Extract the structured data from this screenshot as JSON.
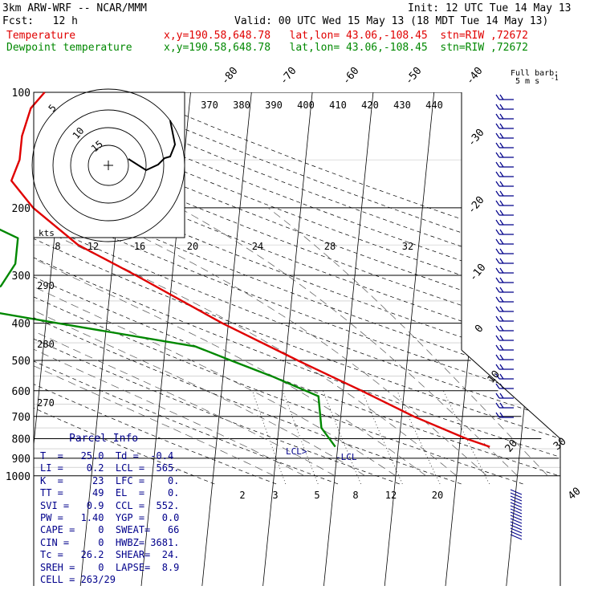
{
  "header": {
    "model": "3km ARW-WRF -- NCAR/MMM",
    "fcst": "Fcst:   12 h",
    "init": "Init: 12 UTC Tue 14 May 13",
    "valid": "Valid: 00 UTC Wed 15 May 13 (18 MDT Tue 14 May 13)",
    "temp_label": "Temperature",
    "dew_label": "Dewpoint temperature",
    "loc_text": "x,y=190.58,648.78   lat,lon= 43.06,-108.45  stn=RIW ,72672"
  },
  "barb_legend": {
    "line1": "Full barb:",
    "line2": "5 m s",
    "sup": "-1"
  },
  "colors": {
    "temp": "#e00000",
    "dew": "#008800",
    "info": "#00008b",
    "barb": "#00008b",
    "grid": "#000000",
    "moist": "#555555"
  },
  "chart_data": {
    "type": "skew-t",
    "pressure_ticks": [
      "100",
      "200",
      "300",
      "400",
      "500",
      "600",
      "700",
      "800",
      "900",
      "1000"
    ],
    "isotherm_labels_top": [
      "-80",
      "-70",
      "-60",
      "-50",
      "-40"
    ],
    "isotherm_labels_right": [
      "-30",
      "-20",
      "-10",
      "0",
      "10",
      "20",
      "30",
      "40"
    ],
    "theta_labels_top": [
      "370",
      "380",
      "390",
      "400",
      "410",
      "420",
      "430",
      "440"
    ],
    "theta_labels_left": [
      "290",
      "280",
      "270"
    ],
    "mixing_ratio_labels": [
      "2",
      "3",
      "5",
      "8",
      "12",
      "20"
    ],
    "lcl_labels": [
      "LCL",
      "LCL"
    ],
    "temperature": [
      {
        "p": 840,
        "t": 25.0
      },
      {
        "p": 800,
        "t": 21.0
      },
      {
        "p": 700,
        "t": 12.0
      },
      {
        "p": 600,
        "t": 3.0
      },
      {
        "p": 500,
        "t": -8.0
      },
      {
        "p": 400,
        "t": -21.0
      },
      {
        "p": 300,
        "t": -36.0
      },
      {
        "p": 250,
        "t": -46.0
      },
      {
        "p": 200,
        "t": -54.0
      },
      {
        "p": 170,
        "t": -58.0
      },
      {
        "p": 150,
        "t": -57.0
      },
      {
        "p": 130,
        "t": -57.0
      },
      {
        "p": 110,
        "t": -56.0
      },
      {
        "p": 100,
        "t": -54.0
      }
    ],
    "dewpoint": [
      {
        "p": 840,
        "t": -0.4
      },
      {
        "p": 750,
        "t": -3.0
      },
      {
        "p": 620,
        "t": -4.0
      },
      {
        "p": 550,
        "t": -12.0
      },
      {
        "p": 500,
        "t": -19.0
      },
      {
        "p": 460,
        "t": -25.0
      },
      {
        "p": 400,
        "t": -48.0
      },
      {
        "p": 360,
        "t": -65.0
      },
      {
        "p": 320,
        "t": -58.0
      },
      {
        "p": 280,
        "t": -56.0
      },
      {
        "p": 240,
        "t": -56.0
      },
      {
        "p": 200,
        "t": -67.0
      },
      {
        "p": 150,
        "t": -77.0
      },
      {
        "p": 120,
        "t": -80.0
      },
      {
        "p": 100,
        "t": -85.0
      }
    ],
    "hodograph": {
      "ring_labels": [
        "5",
        "10",
        "15"
      ],
      "speed_axis_label": "kts",
      "speed_ticks": [
        "8",
        "12",
        "16",
        "20",
        "24",
        "28",
        "32"
      ]
    }
  },
  "parcel_info": {
    "title": "Parcel Info",
    "rows": [
      "T  =   25.0  Td =  -0.4",
      "LI =    0.2  LCL =  565.",
      "K  =     23  LFC =    0.",
      "TT =     49  EL  =    0.",
      "SVI =   0.9  CCL =  552.",
      "PW =   1.40  YGP =   0.0",
      "CAPE =    0  SWEAT=   66",
      "CIN =     0  HWBZ= 3681.",
      "Tc =   26.2  SHEAR=  24.",
      "SREH =    0  LAPSE=  8.9",
      "CELL = 263/29"
    ]
  }
}
